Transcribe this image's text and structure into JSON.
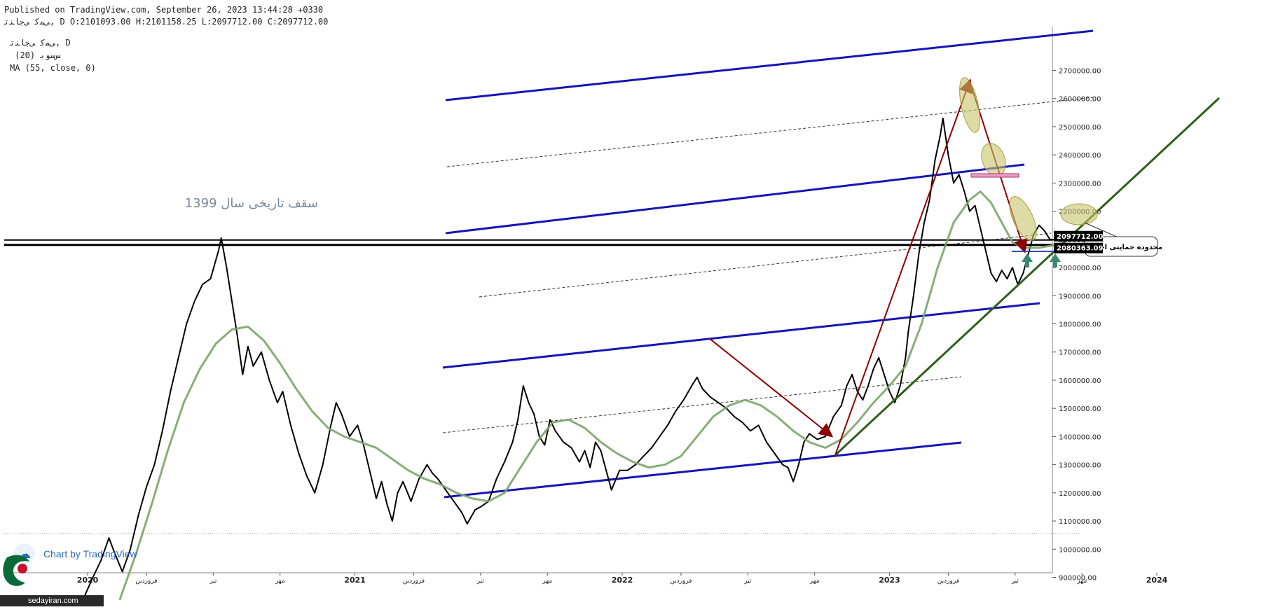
{
  "header": {
    "line1": "Published on TradingView.com, September 26, 2023 13:44:28 +0330",
    "line2": "ﯽﻤﮐ ﯽﺟﺎﻨﺗ, D O:2101093.00 H:2101158.25 L:2097712.00 C:2097712.00"
  },
  "legend": {
    "line1": "ﯽﻤﮐ ﯽﺟﺎﻨﺗ, D",
    "line2": " (20) ﺲﺳﻮﺑ",
    "line3": "MA (55, close, 0)"
  },
  "watermark": {
    "text": "Chart by TradingView"
  },
  "site_badge": {
    "text": "sedayiran.com"
  },
  "colors": {
    "price_line": "#000000",
    "ma_line": "#7aa56a",
    "channel_line": "#1515b5",
    "trend_line": "#2f5f1c",
    "arrow": "#8b0000",
    "highlight_ellipse": "#c8c46a",
    "support_arrow": "#3a8a6a",
    "axis_label_bg": "#000000"
  },
  "chart_data": {
    "type": "line",
    "title": "",
    "xlabel": "",
    "ylabel": "",
    "ylim": [
      800000,
      2750000
    ],
    "y_ticks": [
      900000,
      1000000,
      1100000,
      1200000,
      1300000,
      1400000,
      1500000,
      1600000,
      1700000,
      1800000,
      1900000,
      2000000,
      2100000,
      2200000,
      2300000,
      2400000,
      2500000,
      2600000,
      2700000
    ],
    "y_tick_labels": [
      "900000.00",
      "1000000.00",
      "1100000.00",
      "1200000.00",
      "1300000.00",
      "1400000.00",
      "1500000.00",
      "1600000.00",
      "1700000.00",
      "1800000.00",
      "1900000.00",
      "2000000.00",
      "2100000.00",
      "2200000.00",
      "2300000.00",
      "2400000.00",
      "2500000.00",
      "2600000.00",
      "2700000.00"
    ],
    "x_ticks": [
      {
        "t": 2020.0,
        "label": "2020",
        "bold": true
      },
      {
        "t": 2020.22,
        "label": "فروردین",
        "bold": false
      },
      {
        "t": 2020.47,
        "label": "تیر",
        "bold": false
      },
      {
        "t": 2020.72,
        "label": "مهر",
        "bold": false
      },
      {
        "t": 2021.0,
        "label": "2021",
        "bold": true
      },
      {
        "t": 2021.22,
        "label": "فروردین",
        "bold": false
      },
      {
        "t": 2021.47,
        "label": "تیر",
        "bold": false
      },
      {
        "t": 2021.72,
        "label": "مهر",
        "bold": false
      },
      {
        "t": 2022.0,
        "label": "2022",
        "bold": true
      },
      {
        "t": 2022.22,
        "label": "فروردین",
        "bold": false
      },
      {
        "t": 2022.47,
        "label": "تیر",
        "bold": false
      },
      {
        "t": 2022.72,
        "label": "مهر",
        "bold": false
      },
      {
        "t": 2023.0,
        "label": "2023",
        "bold": true
      },
      {
        "t": 2023.22,
        "label": "فروردین",
        "bold": false
      },
      {
        "t": 2023.47,
        "label": "تیر",
        "bold": false
      },
      {
        "t": 2023.72,
        "label": "مهر",
        "bold": false
      },
      {
        "t": 2024.0,
        "label": "2024",
        "bold": true
      }
    ],
    "x_range": [
      2019.7,
      2024.25
    ],
    "price_labels": [
      {
        "value": 2097712,
        "label": "2097712.00"
      },
      {
        "value": 2080363.09,
        "label": "2080363.09"
      }
    ],
    "series": [
      {
        "name": "ﯽﻤﮐ ﯽﺟﺎﻨﺗ",
        "kind": "price",
        "points": [
          [
            2019.98,
            815000
          ],
          [
            2020.02,
            900000
          ],
          [
            2020.05,
            960000
          ],
          [
            2020.08,
            1040000
          ],
          [
            2020.1,
            990000
          ],
          [
            2020.13,
            920000
          ],
          [
            2020.16,
            1000000
          ],
          [
            2020.19,
            1120000
          ],
          [
            2020.22,
            1220000
          ],
          [
            2020.25,
            1300000
          ],
          [
            2020.28,
            1420000
          ],
          [
            2020.31,
            1560000
          ],
          [
            2020.34,
            1680000
          ],
          [
            2020.37,
            1800000
          ],
          [
            2020.4,
            1880000
          ],
          [
            2020.43,
            1940000
          ],
          [
            2020.46,
            1960000
          ],
          [
            2020.49,
            2060000
          ],
          [
            2020.5,
            2105000
          ],
          [
            2020.52,
            2000000
          ],
          [
            2020.54,
            1880000
          ],
          [
            2020.56,
            1760000
          ],
          [
            2020.58,
            1620000
          ],
          [
            2020.6,
            1720000
          ],
          [
            2020.62,
            1650000
          ],
          [
            2020.65,
            1700000
          ],
          [
            2020.68,
            1600000
          ],
          [
            2020.71,
            1520000
          ],
          [
            2020.73,
            1560000
          ],
          [
            2020.76,
            1440000
          ],
          [
            2020.79,
            1340000
          ],
          [
            2020.82,
            1260000
          ],
          [
            2020.85,
            1200000
          ],
          [
            2020.88,
            1300000
          ],
          [
            2020.91,
            1440000
          ],
          [
            2020.93,
            1520000
          ],
          [
            2020.95,
            1480000
          ],
          [
            2020.98,
            1400000
          ],
          [
            2021.01,
            1440000
          ],
          [
            2021.03,
            1380000
          ],
          [
            2021.06,
            1260000
          ],
          [
            2021.08,
            1180000
          ],
          [
            2021.1,
            1240000
          ],
          [
            2021.12,
            1160000
          ],
          [
            2021.14,
            1100000
          ],
          [
            2021.16,
            1200000
          ],
          [
            2021.18,
            1240000
          ],
          [
            2021.21,
            1170000
          ],
          [
            2021.24,
            1250000
          ],
          [
            2021.27,
            1300000
          ],
          [
            2021.29,
            1270000
          ],
          [
            2021.31,
            1250000
          ],
          [
            2021.34,
            1210000
          ],
          [
            2021.37,
            1170000
          ],
          [
            2021.4,
            1130000
          ],
          [
            2021.42,
            1090000
          ],
          [
            2021.45,
            1140000
          ],
          [
            2021.47,
            1150000
          ],
          [
            2021.5,
            1170000
          ],
          [
            2021.53,
            1250000
          ],
          [
            2021.56,
            1310000
          ],
          [
            2021.59,
            1380000
          ],
          [
            2021.61,
            1460000
          ],
          [
            2021.63,
            1580000
          ],
          [
            2021.65,
            1520000
          ],
          [
            2021.67,
            1480000
          ],
          [
            2021.69,
            1400000
          ],
          [
            2021.71,
            1370000
          ],
          [
            2021.73,
            1460000
          ],
          [
            2021.75,
            1420000
          ],
          [
            2021.78,
            1380000
          ],
          [
            2021.81,
            1360000
          ],
          [
            2021.84,
            1310000
          ],
          [
            2021.86,
            1350000
          ],
          [
            2021.88,
            1290000
          ],
          [
            2021.9,
            1380000
          ],
          [
            2021.92,
            1350000
          ],
          [
            2021.94,
            1280000
          ],
          [
            2021.96,
            1210000
          ],
          [
            2021.99,
            1280000
          ],
          [
            2022.02,
            1280000
          ],
          [
            2022.05,
            1300000
          ],
          [
            2022.08,
            1330000
          ],
          [
            2022.11,
            1360000
          ],
          [
            2022.14,
            1400000
          ],
          [
            2022.17,
            1440000
          ],
          [
            2022.2,
            1490000
          ],
          [
            2022.23,
            1530000
          ],
          [
            2022.26,
            1580000
          ],
          [
            2022.28,
            1610000
          ],
          [
            2022.3,
            1570000
          ],
          [
            2022.33,
            1540000
          ],
          [
            2022.36,
            1520000
          ],
          [
            2022.39,
            1500000
          ],
          [
            2022.42,
            1470000
          ],
          [
            2022.45,
            1450000
          ],
          [
            2022.48,
            1420000
          ],
          [
            2022.51,
            1440000
          ],
          [
            2022.54,
            1380000
          ],
          [
            2022.57,
            1340000
          ],
          [
            2022.6,
            1300000
          ],
          [
            2022.62,
            1290000
          ],
          [
            2022.64,
            1240000
          ],
          [
            2022.66,
            1300000
          ],
          [
            2022.68,
            1380000
          ],
          [
            2022.7,
            1410000
          ],
          [
            2022.73,
            1390000
          ],
          [
            2022.76,
            1400000
          ],
          [
            2022.79,
            1470000
          ],
          [
            2022.82,
            1510000
          ],
          [
            2022.84,
            1580000
          ],
          [
            2022.86,
            1620000
          ],
          [
            2022.88,
            1560000
          ],
          [
            2022.9,
            1530000
          ],
          [
            2022.92,
            1580000
          ],
          [
            2022.94,
            1640000
          ],
          [
            2022.96,
            1680000
          ],
          [
            2022.98,
            1620000
          ],
          [
            2023.0,
            1560000
          ],
          [
            2023.02,
            1520000
          ],
          [
            2023.04,
            1580000
          ],
          [
            2023.06,
            1680000
          ],
          [
            2023.07,
            1770000
          ],
          [
            2023.09,
            1900000
          ],
          [
            2023.11,
            2050000
          ],
          [
            2023.13,
            2160000
          ],
          [
            2023.15,
            2240000
          ],
          [
            2023.17,
            2380000
          ],
          [
            2023.19,
            2470000
          ],
          [
            2023.2,
            2530000
          ],
          [
            2023.22,
            2400000
          ],
          [
            2023.24,
            2300000
          ],
          [
            2023.26,
            2330000
          ],
          [
            2023.28,
            2270000
          ],
          [
            2023.3,
            2200000
          ],
          [
            2023.32,
            2220000
          ],
          [
            2023.34,
            2140000
          ],
          [
            2023.36,
            2060000
          ],
          [
            2023.38,
            1980000
          ],
          [
            2023.4,
            1950000
          ],
          [
            2023.42,
            1990000
          ],
          [
            2023.44,
            1960000
          ],
          [
            2023.46,
            2000000
          ],
          [
            2023.48,
            1940000
          ],
          [
            2023.5,
            1980000
          ],
          [
            2023.52,
            2050000
          ],
          [
            2023.54,
            2120000
          ],
          [
            2023.56,
            2150000
          ],
          [
            2023.58,
            2130000
          ],
          [
            2023.6,
            2100000
          ],
          [
            2023.62,
            2097712
          ]
        ]
      },
      {
        "name": "MA (55, close, 0)",
        "kind": "ma",
        "points": [
          [
            2020.12,
            820000
          ],
          [
            2020.18,
            980000
          ],
          [
            2020.24,
            1160000
          ],
          [
            2020.3,
            1350000
          ],
          [
            2020.36,
            1520000
          ],
          [
            2020.42,
            1640000
          ],
          [
            2020.48,
            1730000
          ],
          [
            2020.54,
            1780000
          ],
          [
            2020.6,
            1790000
          ],
          [
            2020.66,
            1740000
          ],
          [
            2020.72,
            1660000
          ],
          [
            2020.78,
            1570000
          ],
          [
            2020.84,
            1490000
          ],
          [
            2020.9,
            1430000
          ],
          [
            2020.96,
            1400000
          ],
          [
            2021.02,
            1380000
          ],
          [
            2021.08,
            1360000
          ],
          [
            2021.14,
            1320000
          ],
          [
            2021.2,
            1280000
          ],
          [
            2021.26,
            1250000
          ],
          [
            2021.32,
            1230000
          ],
          [
            2021.38,
            1200000
          ],
          [
            2021.44,
            1180000
          ],
          [
            2021.5,
            1170000
          ],
          [
            2021.56,
            1200000
          ],
          [
            2021.62,
            1290000
          ],
          [
            2021.68,
            1380000
          ],
          [
            2021.74,
            1450000
          ],
          [
            2021.8,
            1460000
          ],
          [
            2021.86,
            1430000
          ],
          [
            2021.92,
            1380000
          ],
          [
            2021.98,
            1340000
          ],
          [
            2022.04,
            1310000
          ],
          [
            2022.1,
            1290000
          ],
          [
            2022.16,
            1300000
          ],
          [
            2022.22,
            1330000
          ],
          [
            2022.28,
            1400000
          ],
          [
            2022.34,
            1470000
          ],
          [
            2022.4,
            1510000
          ],
          [
            2022.46,
            1530000
          ],
          [
            2022.52,
            1510000
          ],
          [
            2022.58,
            1470000
          ],
          [
            2022.64,
            1420000
          ],
          [
            2022.7,
            1380000
          ],
          [
            2022.76,
            1360000
          ],
          [
            2022.82,
            1390000
          ],
          [
            2022.88,
            1450000
          ],
          [
            2022.94,
            1520000
          ],
          [
            2023.0,
            1580000
          ],
          [
            2023.06,
            1650000
          ],
          [
            2023.12,
            1800000
          ],
          [
            2023.18,
            2000000
          ],
          [
            2023.24,
            2160000
          ],
          [
            2023.3,
            2240000
          ],
          [
            2023.34,
            2270000
          ],
          [
            2023.38,
            2230000
          ],
          [
            2023.42,
            2160000
          ],
          [
            2023.46,
            2090000
          ],
          [
            2023.5,
            2070000
          ],
          [
            2023.56,
            2070000
          ],
          [
            2023.62,
            2080363
          ]
        ]
      }
    ],
    "annotations": {
      "historic_ceiling_label": "سقف تاریخی سال 1399",
      "support_zone_label": "محدوده حمایتی احتمالی"
    }
  }
}
